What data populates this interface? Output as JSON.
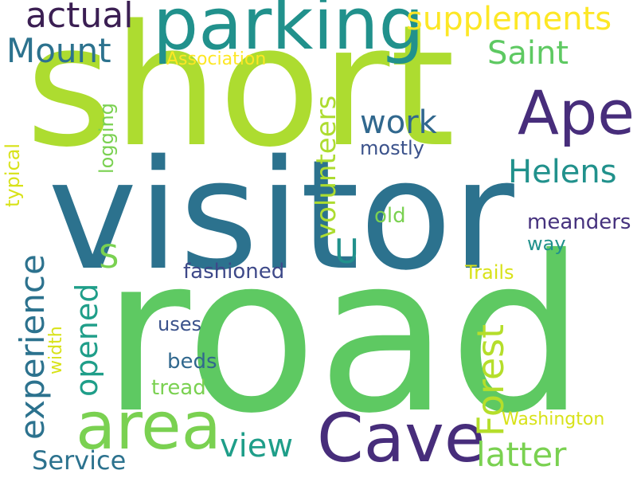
{
  "word_cloud": {
    "words": [
      {
        "text": "road",
        "color": "#5ec962"
      },
      {
        "text": "visitor",
        "color": "#2c728e"
      },
      {
        "text": "short",
        "color": "#addc30"
      },
      {
        "text": "parking",
        "color": "#21918c"
      },
      {
        "text": "Ape",
        "color": "#472d7b"
      },
      {
        "text": "Cave",
        "color": "#472d7b"
      },
      {
        "text": "area",
        "color": "#7ad151"
      },
      {
        "text": "actual",
        "color": "#3b1f53"
      },
      {
        "text": "supplements",
        "color": "#fde725"
      },
      {
        "text": "Mount",
        "color": "#2c728e"
      },
      {
        "text": "Saint",
        "color": "#5ec962"
      },
      {
        "text": "Association",
        "color": "#fde725"
      },
      {
        "text": "work",
        "color": "#31688e"
      },
      {
        "text": "mostly",
        "color": "#3b528b"
      },
      {
        "text": "Helens",
        "color": "#21918c"
      },
      {
        "text": "volunteers",
        "color": "#addc30"
      },
      {
        "text": "logging",
        "color": "#7ad151"
      },
      {
        "text": "typical",
        "color": "#d8e219"
      },
      {
        "text": "experience",
        "color": "#2c728e"
      },
      {
        "text": "S",
        "color": "#7ad151"
      },
      {
        "text": "U",
        "color": "#21918c"
      },
      {
        "text": "old",
        "color": "#7ad151"
      },
      {
        "text": "meanders",
        "color": "#46327e"
      },
      {
        "text": "way",
        "color": "#21918c"
      },
      {
        "text": "opened",
        "color": "#1f9e89"
      },
      {
        "text": "fashioned",
        "color": "#3e4989"
      },
      {
        "text": "Trails",
        "color": "#d8e219"
      },
      {
        "text": "Forest",
        "color": "#b5de2b"
      },
      {
        "text": "width",
        "color": "#d8e219"
      },
      {
        "text": "uses",
        "color": "#3b528b"
      },
      {
        "text": "beds",
        "color": "#31688e"
      },
      {
        "text": "tread",
        "color": "#7ad151"
      },
      {
        "text": "Washington",
        "color": "#d8e219"
      },
      {
        "text": "view",
        "color": "#1f9e89"
      },
      {
        "text": "latter",
        "color": "#7ad151"
      },
      {
        "text": "Service",
        "color": "#2c728e"
      }
    ]
  }
}
